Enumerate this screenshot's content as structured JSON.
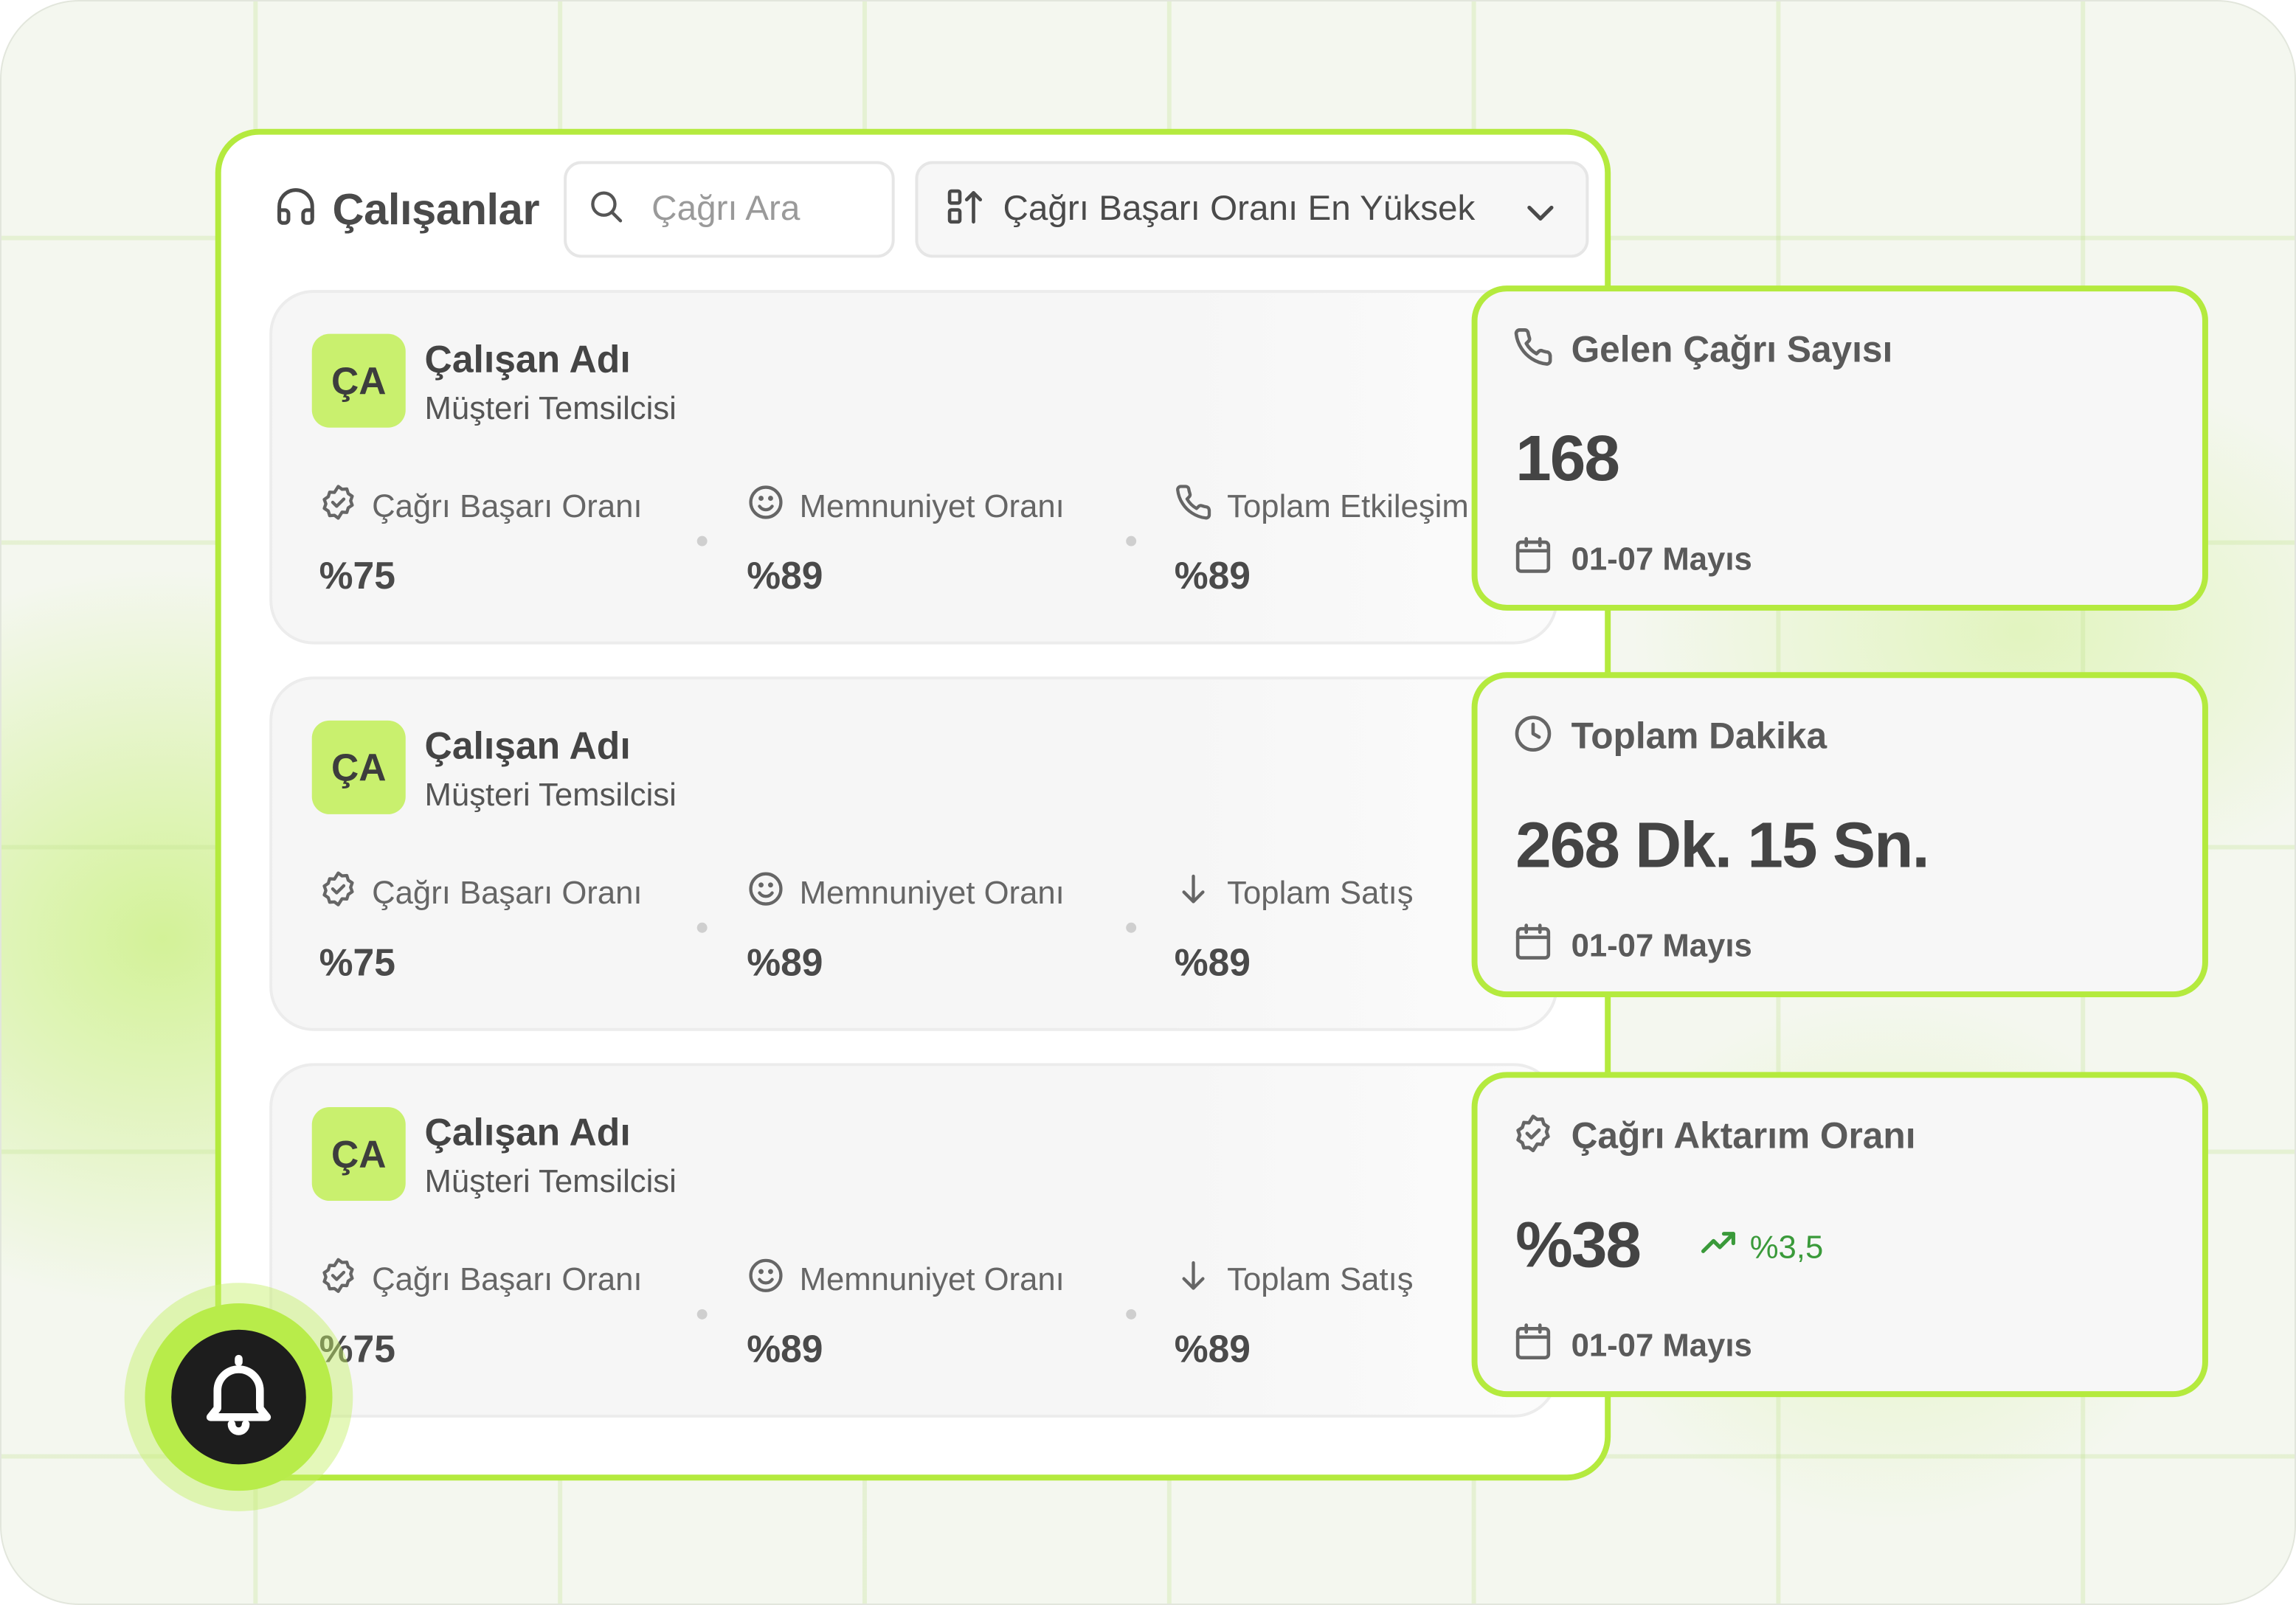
{
  "panel": {
    "title": "Çalışanlar",
    "search_placeholder": "Çağrı Ara",
    "sort_label": "Çağrı Başarı Oranı En Yüksek"
  },
  "employees": [
    {
      "initials": "ÇA",
      "name": "Çalışan Adı",
      "role": "Müşteri Temsilcisi",
      "metrics": [
        {
          "icon": "badge-check-icon",
          "label": "Çağrı Başarı Oranı",
          "value": "%75"
        },
        {
          "icon": "smile-icon",
          "label": "Memnuniyet Oranı",
          "value": "%89"
        },
        {
          "icon": "phone-icon",
          "label": "Toplam Etkileşim",
          "value": "%89"
        }
      ]
    },
    {
      "initials": "ÇA",
      "name": "Çalışan Adı",
      "role": "Müşteri Temsilcisi",
      "metrics": [
        {
          "icon": "badge-check-icon",
          "label": "Çağrı Başarı Oranı",
          "value": "%75"
        },
        {
          "icon": "smile-icon",
          "label": "Memnuniyet Oranı",
          "value": "%89"
        },
        {
          "icon": "arrow-down-icon",
          "label": "Toplam Satış",
          "value": "%89"
        }
      ]
    },
    {
      "initials": "ÇA",
      "name": "Çalışan Adı",
      "role": "Müşteri Temsilcisi",
      "metrics": [
        {
          "icon": "badge-check-icon",
          "label": "Çağrı Başarı Oranı",
          "value": "%75"
        },
        {
          "icon": "smile-icon",
          "label": "Memnuniyet Oranı",
          "value": "%89"
        },
        {
          "icon": "arrow-down-icon",
          "label": "Toplam Satış",
          "value": "%89"
        }
      ]
    }
  ],
  "stats": [
    {
      "icon": "phone-icon",
      "title": "Gelen Çağrı Sayısı",
      "value": "168",
      "date": "01-07 Mayıs"
    },
    {
      "icon": "clock-icon",
      "title": "Toplam Dakika",
      "value": "268 Dk. 15 Sn.",
      "date": "01-07 Mayıs"
    },
    {
      "icon": "badge-check-icon",
      "title": "Çağrı Aktarım Oranı",
      "value": "%38",
      "trend": "%3,5",
      "date": "01-07 Mayıs"
    }
  ],
  "colors": {
    "accent": "#b4ea3e",
    "avatar_bg": "#c9f06e",
    "trend_up": "#3a9a3a",
    "bell_bg": "#1d1d1d"
  }
}
